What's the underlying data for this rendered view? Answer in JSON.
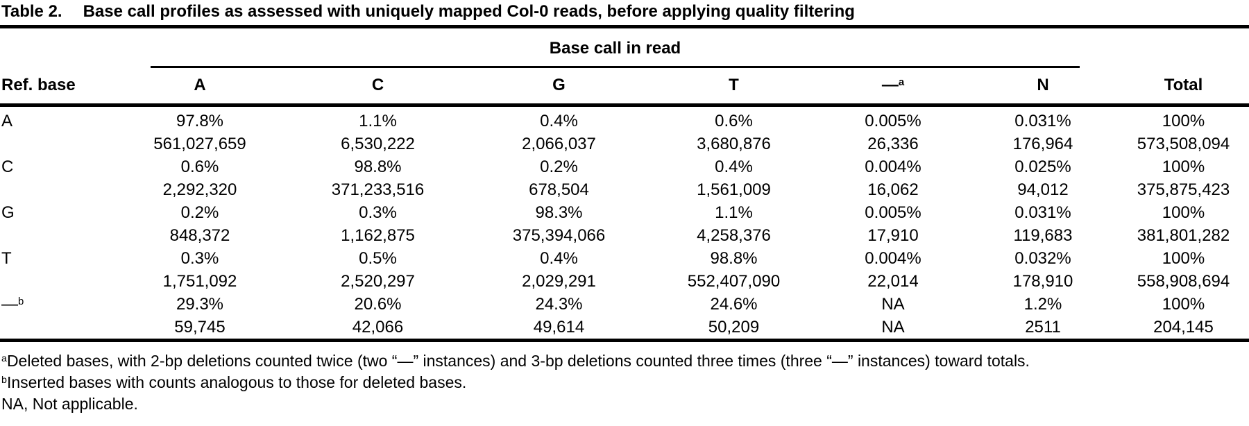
{
  "caption": {
    "label": "Table 2.",
    "title": "Base call profiles as assessed with uniquely mapped Col-0 reads, before applying quality filtering"
  },
  "table": {
    "spanner_header": "Base call in read",
    "ref_base_header": "Ref. base",
    "columns": [
      "A",
      "C",
      "G",
      "T",
      "—",
      "N",
      "Total"
    ],
    "dash_column_superscript": "a",
    "rows": [
      {
        "ref": "A",
        "ref_sup": "",
        "percents": [
          "97.8%",
          "1.1%",
          "0.4%",
          "0.6%",
          "0.005%",
          "0.031%",
          "100%"
        ],
        "counts": [
          "561,027,659",
          "6,530,222",
          "2,066,037",
          "3,680,876",
          "26,336",
          "176,964",
          "573,508,094"
        ]
      },
      {
        "ref": "C",
        "ref_sup": "",
        "percents": [
          "0.6%",
          "98.8%",
          "0.2%",
          "0.4%",
          "0.004%",
          "0.025%",
          "100%"
        ],
        "counts": [
          "2,292,320",
          "371,233,516",
          "678,504",
          "1,561,009",
          "16,062",
          "94,012",
          "375,875,423"
        ]
      },
      {
        "ref": "G",
        "ref_sup": "",
        "percents": [
          "0.2%",
          "0.3%",
          "98.3%",
          "1.1%",
          "0.005%",
          "0.031%",
          "100%"
        ],
        "counts": [
          "848,372",
          "1,162,875",
          "375,394,066",
          "4,258,376",
          "17,910",
          "119,683",
          "381,801,282"
        ]
      },
      {
        "ref": "T",
        "ref_sup": "",
        "percents": [
          "0.3%",
          "0.5%",
          "0.4%",
          "98.8%",
          "0.004%",
          "0.032%",
          "100%"
        ],
        "counts": [
          "1,751,092",
          "2,520,297",
          "2,029,291",
          "552,407,090",
          "22,014",
          "178,910",
          "558,908,694"
        ]
      },
      {
        "ref": "—",
        "ref_sup": "b",
        "percents": [
          "29.3%",
          "20.6%",
          "24.3%",
          "24.6%",
          "NA",
          "1.2%",
          "100%"
        ],
        "counts": [
          "59,745",
          "42,066",
          "49,614",
          "50,209",
          "NA",
          "2511",
          "204,145"
        ]
      }
    ]
  },
  "footnotes": [
    {
      "sup": "a",
      "text": "Deleted bases, with 2-bp deletions counted twice (two “—” instances) and 3-bp deletions counted three times (three “—” instances) toward totals."
    },
    {
      "sup": "b",
      "text": "Inserted bases with counts analogous to those for deleted bases."
    },
    {
      "sup": "",
      "text": "NA, Not applicable."
    }
  ]
}
